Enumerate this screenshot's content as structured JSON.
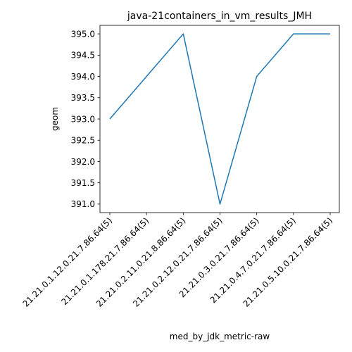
{
  "chart_data": {
    "type": "line",
    "title": "java-21containers_in_vm_results_JMH",
    "xlabel": "med_by_jdk_metric-raw",
    "ylabel": "geom",
    "categories": [
      "21.21.0.1.12.0.21.7.86.64(5)",
      "21.21.0.1.178.21.7.86.64(5)",
      "21.21.0.2.11.0.21.8.86.64(5)",
      "21.21.0.2.12.0.21.7.86.64(5)",
      "21.21.0.3.0.21.7.86.64(5)",
      "21.21.0.4.7.0.21.7.86.64(5)",
      "21.21.0.5.10.0.21.7.86.64(5)"
    ],
    "series": [
      {
        "values": [
          393.0,
          394.0,
          395.0,
          391.0,
          394.0,
          395.0,
          395.0
        ]
      }
    ],
    "ylim": [
      390.8,
      395.2
    ],
    "yticks": [
      "391.0",
      "391.5",
      "392.0",
      "392.5",
      "393.0",
      "393.5",
      "394.0",
      "394.5",
      "395.0"
    ],
    "line_color": "#1f77b4",
    "grid": false
  }
}
